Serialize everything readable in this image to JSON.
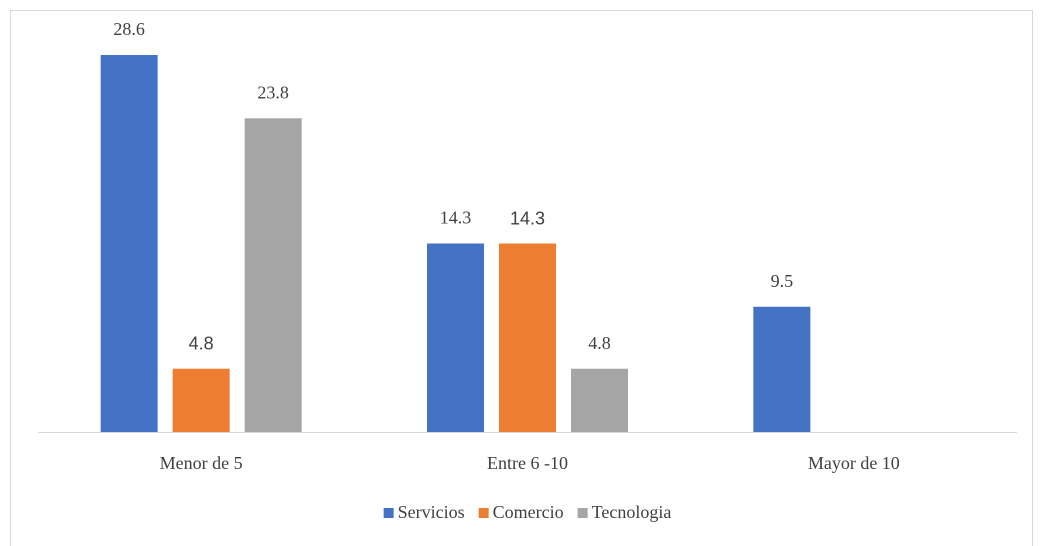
{
  "chart_data": {
    "type": "bar",
    "categories": [
      "Menor de 5",
      "Entre 6 -10",
      "Mayor de 10"
    ],
    "series": [
      {
        "name": "Servicios",
        "color": "#4472c4",
        "values": [
          28.6,
          14.3,
          9.5
        ]
      },
      {
        "name": "Comercio",
        "color": "#ed7d31",
        "values": [
          4.8,
          14.3,
          null
        ]
      },
      {
        "name": "Tecnologia",
        "color": "#a5a5a5",
        "values": [
          23.8,
          4.8,
          null
        ]
      }
    ],
    "ylim": [
      0,
      30
    ],
    "legend": "bottom"
  }
}
